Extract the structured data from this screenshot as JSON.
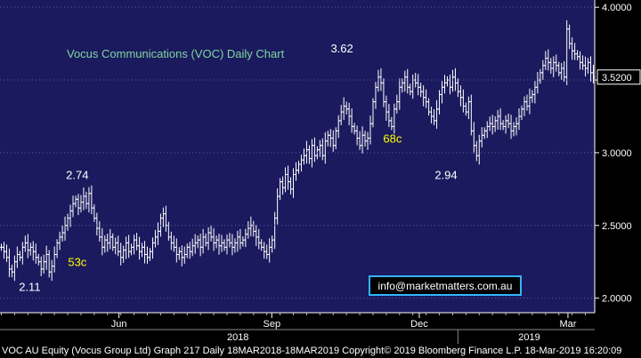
{
  "chart_data": {
    "type": "ohlc-bar",
    "title": "Vocus Communications (VOC) Daily Chart",
    "ylim": [
      1.9,
      4.05
    ],
    "yticks": [
      "4.0000",
      "3.5000",
      "3.0000",
      "2.5000",
      "2.0000"
    ],
    "ytick_values": [
      4.0,
      3.5,
      3.0,
      2.5,
      2.0
    ],
    "last_price": 3.52,
    "last_price_label": "3.5200",
    "x_month_labels": [
      "Jun",
      "Sep",
      "Dec",
      "Mar"
    ],
    "x_month_positions": [
      0.2,
      0.457,
      0.705,
      0.955
    ],
    "year_labels": [
      "2018",
      "2019"
    ],
    "year_positions": [
      0.4,
      0.89
    ],
    "year_divider_position": 0.77,
    "annotations": [
      {
        "text": "2.74",
        "x": 0.13,
        "y": 2.82,
        "color": "#ffffff"
      },
      {
        "text": "2.11",
        "x": 0.05,
        "y": 2.05,
        "color": "#ffffff"
      },
      {
        "text": "53c",
        "x": 0.13,
        "y": 2.22,
        "color": "#ffff00"
      },
      {
        "text": "3.62",
        "x": 0.575,
        "y": 3.69,
        "color": "#ffffff"
      },
      {
        "text": "68c",
        "x": 0.66,
        "y": 3.07,
        "color": "#ffff00"
      },
      {
        "text": "2.94",
        "x": 0.75,
        "y": 2.82,
        "color": "#ffffff"
      }
    ],
    "watermark": "info@marketmatters.com.au",
    "series": [
      {
        "values": [
          2.35,
          2.32,
          2.28,
          2.2,
          2.18,
          2.25,
          2.3,
          2.28,
          2.35,
          2.38,
          2.33,
          2.35,
          2.32,
          2.28,
          2.25,
          2.2,
          2.25,
          2.3,
          2.18,
          2.22,
          2.3,
          2.38,
          2.42,
          2.45,
          2.5,
          2.55,
          2.6,
          2.65,
          2.68,
          2.62,
          2.66,
          2.7,
          2.65,
          2.72,
          2.62,
          2.55,
          2.48,
          2.42,
          2.35,
          2.4,
          2.38,
          2.42,
          2.35,
          2.38,
          2.32,
          2.28,
          2.33,
          2.38,
          2.32,
          2.35,
          2.4,
          2.36,
          2.32,
          2.35,
          2.3,
          2.28,
          2.32,
          2.38,
          2.42,
          2.46,
          2.55,
          2.58,
          2.5,
          2.42,
          2.38,
          2.35,
          2.3,
          2.32,
          2.28,
          2.3,
          2.35,
          2.32,
          2.36,
          2.38,
          2.4,
          2.35,
          2.42,
          2.38,
          2.45,
          2.42,
          2.38,
          2.4,
          2.36,
          2.38,
          2.35,
          2.4,
          2.38,
          2.35,
          2.38,
          2.42,
          2.38,
          2.4,
          2.44,
          2.48,
          2.5,
          2.46,
          2.42,
          2.38,
          2.35,
          2.32,
          2.3,
          2.35,
          2.4,
          2.55,
          2.7,
          2.8,
          2.76,
          2.85,
          2.8,
          2.75,
          2.85,
          2.88,
          2.92,
          2.95,
          2.98,
          3.02,
          2.96,
          3.05,
          2.98,
          3.02,
          3.05,
          2.98,
          3.08,
          3.12,
          3.1,
          3.05,
          3.15,
          3.22,
          3.28,
          3.32,
          3.3,
          3.25,
          3.18,
          3.15,
          3.1,
          3.05,
          3.12,
          3.08,
          3.1,
          3.2,
          3.35,
          3.45,
          3.52,
          3.48,
          3.35,
          3.28,
          3.22,
          3.18,
          3.3,
          3.35,
          3.45,
          3.48,
          3.52,
          3.45,
          3.42,
          3.5,
          3.48,
          3.45,
          3.42,
          3.38,
          3.35,
          3.28,
          3.25,
          3.22,
          3.3,
          3.4,
          3.45,
          3.48,
          3.5,
          3.45,
          3.52,
          3.48,
          3.42,
          3.38,
          3.32,
          3.28,
          3.35,
          3.15,
          3.05,
          2.98,
          3.08,
          3.12,
          3.15,
          3.18,
          3.2,
          3.18,
          3.22,
          3.25,
          3.2,
          3.18,
          3.22,
          3.2,
          3.15,
          3.18,
          3.2,
          3.25,
          3.3,
          3.35,
          3.32,
          3.38,
          3.4,
          3.45,
          3.5,
          3.55,
          3.6,
          3.65,
          3.62,
          3.58,
          3.62,
          3.6,
          3.55,
          3.58,
          3.52,
          3.85,
          3.75,
          3.7,
          3.68,
          3.66,
          3.62,
          3.6,
          3.58,
          3.62,
          3.55,
          3.52
        ]
      }
    ]
  },
  "footer": {
    "text": "VOC AU Equity (Vocus Group Ltd) Graph 217  Daily 18MAR2018-18MAR2019 Copyright© 2019 Bloomberg Finance L.P. 18-Mar-2019 16:20:09"
  },
  "colors": {
    "plot_bg": "#1b1a5e",
    "frame": "#ffffff",
    "bars": "#ffffff",
    "title": "#7fd6a0",
    "annotation_yellow": "#ffff00",
    "watermark": "#ffffff",
    "watermark_border": "#33b5ff"
  }
}
